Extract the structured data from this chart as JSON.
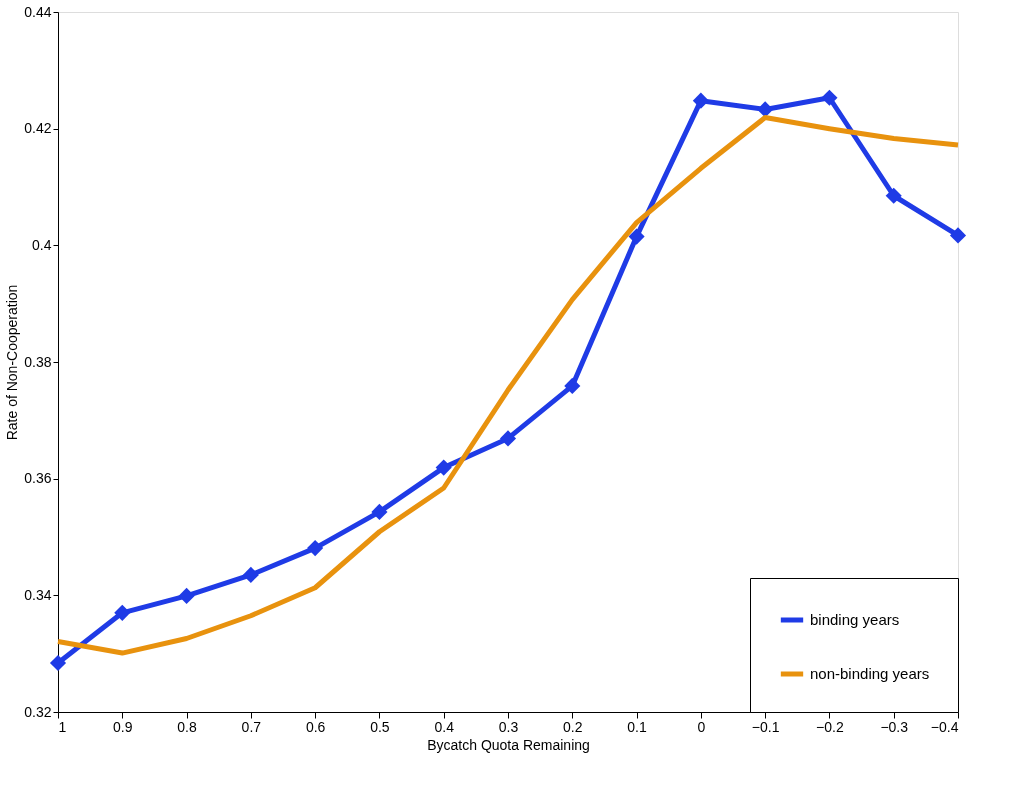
{
  "chart_data": {
    "type": "line",
    "xlabel": "Bycatch Quota Remaining",
    "ylabel": "Rate of Non-Cooperation",
    "x": [
      1,
      0.9,
      0.8,
      0.7,
      0.6,
      0.5,
      0.4,
      0.3,
      0.2,
      0.1,
      0,
      -0.1,
      -0.2,
      -0.3,
      -0.4
    ],
    "series": [
      {
        "name": "binding years",
        "color": "#1f3be6",
        "marker": "diamond",
        "values": [
          0.3284,
          0.337,
          0.3399,
          0.3435,
          0.3481,
          0.3543,
          0.3619,
          0.3669,
          0.3759,
          0.4015,
          0.4248,
          0.4233,
          0.4253,
          0.4085,
          0.4017
        ]
      },
      {
        "name": "non-binding years",
        "color": "#e8920e",
        "marker": "none",
        "values": [
          0.3321,
          0.3301,
          0.3326,
          0.3365,
          0.3413,
          0.3509,
          0.3584,
          0.3752,
          0.3907,
          0.4039,
          0.4132,
          0.4219,
          0.42,
          0.4183,
          0.4172
        ]
      }
    ],
    "xlim": [
      1,
      -0.4
    ],
    "xticks": [
      1,
      0.9,
      0.8,
      0.7,
      0.6,
      0.5,
      0.4,
      0.3,
      0.2,
      0.1,
      0,
      -0.1,
      -0.2,
      -0.3,
      -0.4
    ],
    "ylim": [
      0.32,
      0.44
    ],
    "yticks": [
      0.32,
      0.34,
      0.36,
      0.38,
      0.4,
      0.42,
      0.44
    ],
    "grid": false,
    "legend": "bottom right",
    "line_style": "solid"
  }
}
